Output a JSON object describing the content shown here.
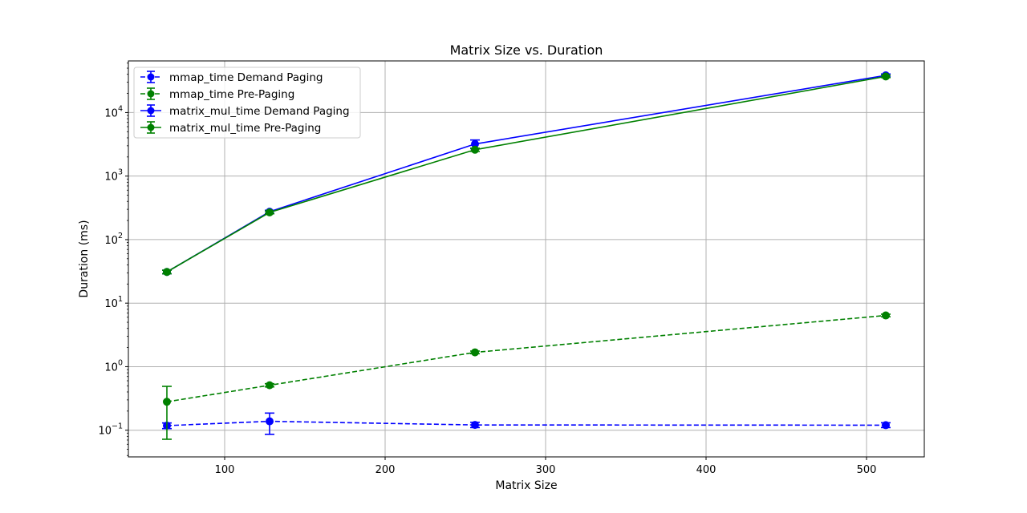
{
  "chart_data": {
    "type": "line",
    "title": "Matrix Size vs. Duration",
    "xlabel": "Matrix Size",
    "ylabel": "Duration (ms)",
    "yscale": "log",
    "xlim": [
      40,
      536
    ],
    "ylim": [
      0.038,
      65000
    ],
    "x_ticks": [
      100,
      200,
      300,
      400,
      500
    ],
    "y_ticks": [
      {
        "value": 0.1,
        "base": "10",
        "exp": "−1"
      },
      {
        "value": 1,
        "base": "10",
        "exp": "0"
      },
      {
        "value": 10,
        "base": "10",
        "exp": "1"
      },
      {
        "value": 100,
        "base": "10",
        "exp": "2"
      },
      {
        "value": 1000,
        "base": "10",
        "exp": "3"
      },
      {
        "value": 10000,
        "base": "10",
        "exp": "4"
      }
    ],
    "grid": true,
    "legend_position": "upper-left",
    "series": [
      {
        "name": "mmap_time Demand Paging",
        "color": "#0000ff",
        "linestyle": "dashed",
        "x": [
          64,
          128,
          256,
          512
        ],
        "y": [
          0.118,
          0.138,
          0.121,
          0.12
        ],
        "yerr_low": [
          0.106,
          0.086,
          0.11,
          0.11
        ],
        "yerr_high": [
          0.13,
          0.186,
          0.133,
          0.131
        ]
      },
      {
        "name": "mmap_time Pre-Paging",
        "color": "#008000",
        "linestyle": "dashed",
        "x": [
          64,
          128,
          256,
          512
        ],
        "y": [
          0.28,
          0.51,
          1.68,
          6.4
        ],
        "yerr_low": [
          0.072,
          0.48,
          1.6,
          6.1
        ],
        "yerr_high": [
          0.49,
          0.54,
          1.76,
          6.7
        ]
      },
      {
        "name": "matrix_mul_time Demand Paging",
        "color": "#0000ff",
        "linestyle": "solid",
        "x": [
          64,
          128,
          256,
          512
        ],
        "y": [
          31,
          275,
          3200,
          38500
        ],
        "yerr_low": [
          29,
          260,
          2700,
          36500
        ],
        "yerr_high": [
          33,
          290,
          3700,
          40500
        ]
      },
      {
        "name": "matrix_mul_time Pre-Paging",
        "color": "#008000",
        "linestyle": "solid",
        "x": [
          64,
          128,
          256,
          512
        ],
        "y": [
          31,
          268,
          2600,
          37000
        ],
        "yerr_low": [
          29,
          255,
          2450,
          35500
        ],
        "yerr_high": [
          33,
          282,
          2750,
          38500
        ]
      }
    ]
  }
}
